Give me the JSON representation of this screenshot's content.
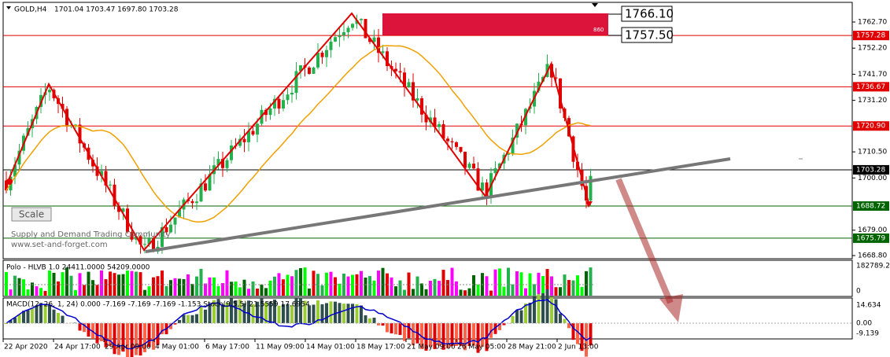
{
  "header": {
    "symbol": "GOLD,H4",
    "ohlc": "1701.04 1703.47 1697.80 1703.28"
  },
  "price_axis": [
    "1762.70",
    "1752.20",
    "1741.70",
    "1731.20",
    "1710.50",
    "1700.00",
    "1679.00",
    "1668.80"
  ],
  "levels": [
    "1757.28",
    "1736.67",
    "1720.90",
    "1703.28",
    "1688.72",
    "1675.79"
  ],
  "zone": {
    "label": "860",
    "top": "1766.10",
    "bottom": "1757.50"
  },
  "scale_button": "Scale",
  "watermark": [
    "Supply and Demand Trading Community",
    "www.set-and-forget.com"
  ],
  "volume": {
    "label": "Polo - HLVB  1.0 24411.0000 54209.0000",
    "axis": [
      "182789.25",
      "0"
    ]
  },
  "macd": {
    "label": "MACD(12, 26, 1, 24) 0.000 -7.169 -7.169 -7.169 -1.153  Stoch(9,5,5) 21.5559 17.6954",
    "axis": [
      "14.634",
      "0.00",
      "-9.139"
    ]
  },
  "time_axis": [
    "22 Apr 2020",
    "24 Apr 17:00",
    "29 Apr 09:00",
    "4 May 01:00",
    "6 May 17:00",
    "11 May 09:00",
    "14 May 01:00",
    "18 May 17:00",
    "21 May 09:00",
    "26 May 05:00",
    "28 May 21:00",
    "2 Jun 13:00"
  ]
}
